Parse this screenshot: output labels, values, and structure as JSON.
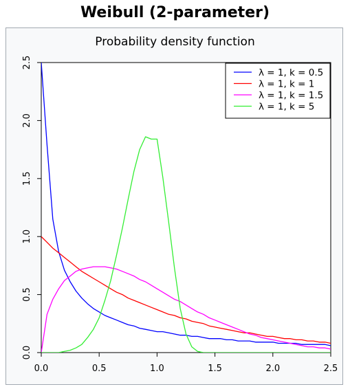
{
  "header": {
    "title": "Weibull (2-parameter)"
  },
  "chart_data": {
    "type": "line",
    "title": "Probability density function",
    "xlabel": "",
    "ylabel": "",
    "xlim": [
      0,
      2.5
    ],
    "ylim": [
      0,
      2.5
    ],
    "xticks": [
      "0.0",
      "0.5",
      "1.0",
      "1.5",
      "2.0",
      "2.5"
    ],
    "yticks": [
      "0.0",
      "0.5",
      "1.0",
      "1.5",
      "2.0",
      "2.5"
    ],
    "grid": false,
    "legend_position": "top-right",
    "x": [
      0.0,
      0.05,
      0.1,
      0.15,
      0.2,
      0.25,
      0.3,
      0.35,
      0.4,
      0.45,
      0.5,
      0.55,
      0.6,
      0.65,
      0.7,
      0.75,
      0.8,
      0.85,
      0.9,
      0.95,
      1.0,
      1.05,
      1.1,
      1.15,
      1.2,
      1.25,
      1.3,
      1.35,
      1.4,
      1.45,
      1.5,
      1.55,
      1.6,
      1.65,
      1.7,
      1.75,
      1.8,
      1.85,
      1.9,
      1.95,
      2.0,
      2.05,
      2.1,
      2.15,
      2.2,
      2.25,
      2.3,
      2.35,
      2.4,
      2.45,
      2.5
    ],
    "series": [
      {
        "name": "λ = 1, k = 0.5",
        "color": "#0000ff",
        "values": [
          null,
          1.79,
          1.15,
          0.87,
          0.71,
          0.61,
          0.53,
          0.47,
          0.42,
          0.38,
          0.35,
          0.32,
          0.3,
          0.28,
          0.26,
          0.24,
          0.23,
          0.21,
          0.2,
          0.19,
          0.18,
          0.18,
          0.17,
          0.16,
          0.15,
          0.15,
          0.14,
          0.14,
          0.13,
          0.12,
          0.12,
          0.12,
          0.11,
          0.11,
          0.1,
          0.1,
          0.1,
          0.09,
          0.09,
          0.09,
          0.09,
          0.08,
          0.08,
          0.08,
          0.08,
          0.07,
          0.07,
          0.07,
          0.07,
          0.07,
          0.06
        ]
      },
      {
        "name": "λ = 1, k = 1",
        "color": "#ff0000",
        "values": [
          1.0,
          0.95,
          0.9,
          0.86,
          0.82,
          0.78,
          0.74,
          0.7,
          0.67,
          0.64,
          0.61,
          0.58,
          0.55,
          0.52,
          0.5,
          0.47,
          0.45,
          0.43,
          0.41,
          0.39,
          0.37,
          0.35,
          0.33,
          0.32,
          0.3,
          0.29,
          0.27,
          0.26,
          0.25,
          0.23,
          0.22,
          0.21,
          0.2,
          0.19,
          0.18,
          0.17,
          0.17,
          0.16,
          0.15,
          0.14,
          0.14,
          0.13,
          0.12,
          0.12,
          0.11,
          0.11,
          0.1,
          0.1,
          0.09,
          0.09,
          0.08
        ]
      },
      {
        "name": "λ = 1, k = 1.5",
        "color": "#ff00ff",
        "values": [
          0.0,
          0.33,
          0.46,
          0.55,
          0.62,
          0.66,
          0.7,
          0.72,
          0.73,
          0.74,
          0.74,
          0.74,
          0.73,
          0.72,
          0.7,
          0.68,
          0.66,
          0.63,
          0.61,
          0.58,
          0.55,
          0.52,
          0.49,
          0.46,
          0.44,
          0.41,
          0.38,
          0.35,
          0.33,
          0.3,
          0.28,
          0.26,
          0.24,
          0.22,
          0.2,
          0.18,
          0.16,
          0.15,
          0.13,
          0.12,
          0.11,
          0.1,
          0.09,
          0.08,
          0.07,
          0.06,
          0.05,
          0.05,
          0.04,
          0.04,
          0.03
        ]
      },
      {
        "name": "λ = 1, k = 5",
        "color": "#33ee33",
        "values": [
          0.0,
          0.0,
          0.0,
          0.0,
          0.01,
          0.02,
          0.04,
          0.07,
          0.13,
          0.2,
          0.3,
          0.45,
          0.62,
          0.84,
          1.07,
          1.32,
          1.56,
          1.75,
          1.86,
          1.84,
          1.84,
          1.51,
          1.13,
          0.73,
          0.38,
          0.16,
          0.05,
          0.01,
          0.0,
          0.0,
          0.0,
          0.0,
          0.0,
          0.0,
          0.0,
          0.0,
          0.0,
          0.0,
          0.0,
          0.0,
          0.0,
          0.0,
          0.0,
          0.0,
          0.0,
          0.0,
          0.0,
          0.0,
          0.0,
          0.0,
          0.0
        ]
      }
    ]
  }
}
